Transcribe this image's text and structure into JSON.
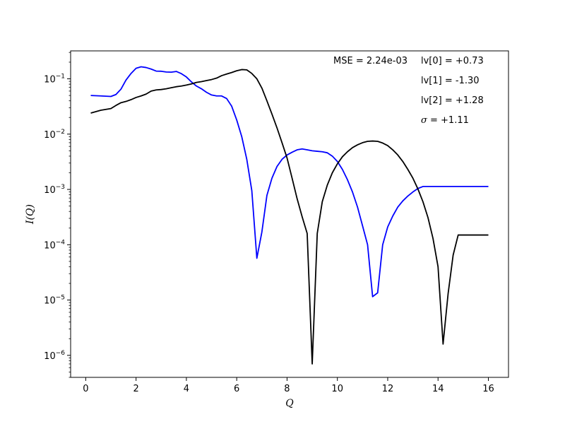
{
  "chart_data": {
    "type": "line",
    "title": "",
    "xlabel": "Q",
    "ylabel": "I(Q)",
    "xlim": [
      -0.6,
      16.8
    ],
    "ylim": [
      4e-07,
      0.32
    ],
    "yscale": "log",
    "xticks": [
      0,
      2,
      4,
      6,
      8,
      10,
      12,
      14,
      16
    ],
    "yticks": [
      {
        "value": 1e-06,
        "exp": "−6"
      },
      {
        "value": 1e-05,
        "exp": "−5"
      },
      {
        "value": 0.0001,
        "exp": "−4"
      },
      {
        "value": 0.001,
        "exp": "−3"
      },
      {
        "value": 0.01,
        "exp": "−2"
      },
      {
        "value": 0.1,
        "exp": "−1"
      }
    ],
    "grid": false,
    "annotations": {
      "mse": "MSE = 2.24e-03",
      "lv0": "lv[0] = +0.73",
      "lv1": "lv[1] = -1.30",
      "lv2": "lv[2] = +1.28",
      "sigma_symbol": "σ",
      "sigma_value": " = +1.11"
    },
    "series": [
      {
        "color": "#0000ff",
        "x": [
          0.2,
          0.6,
          1.0,
          1.2,
          1.4,
          1.6,
          1.8,
          2.0,
          2.2,
          2.4,
          2.6,
          2.8,
          3.0,
          3.2,
          3.4,
          3.6,
          3.8,
          4.0,
          4.2,
          4.4,
          4.6,
          4.8,
          5.0,
          5.2,
          5.4,
          5.6,
          5.8,
          6.0,
          6.2,
          6.4,
          6.6,
          6.8,
          7.0,
          7.2,
          7.4,
          7.6,
          7.8,
          8.0,
          8.2,
          8.4,
          8.6,
          8.8,
          9.0,
          9.2,
          9.4,
          9.6,
          9.8,
          10.0,
          10.2,
          10.4,
          10.6,
          10.8,
          11.0,
          11.2,
          11.4,
          11.6,
          11.8,
          12.0,
          12.2,
          12.4,
          12.6,
          12.8,
          13.0,
          13.2,
          13.4,
          13.6,
          13.8,
          14.0,
          14.2,
          14.4,
          14.6,
          14.8,
          15.0,
          15.2,
          15.4,
          15.6,
          15.8,
          16.0
        ],
        "y": [
          0.05,
          0.049,
          0.048,
          0.052,
          0.065,
          0.095,
          0.125,
          0.155,
          0.165,
          0.16,
          0.15,
          0.138,
          0.137,
          0.133,
          0.132,
          0.136,
          0.124,
          0.108,
          0.088,
          0.074,
          0.066,
          0.057,
          0.051,
          0.049,
          0.049,
          0.044,
          0.032,
          0.018,
          0.009,
          0.0035,
          0.00095,
          5.7e-05,
          0.00017,
          0.00078,
          0.0016,
          0.0026,
          0.0035,
          0.0042,
          0.0047,
          0.0052,
          0.0054,
          0.0052,
          0.005,
          0.0049,
          0.0048,
          0.0046,
          0.004,
          0.0032,
          0.0023,
          0.0015,
          0.0009,
          0.00048,
          0.00022,
          0.0001,
          1.15e-05,
          1.35e-05,
          0.0001,
          0.00021,
          0.00033,
          0.00048,
          0.00062,
          0.00076,
          0.0009,
          0.00104,
          0.00113,
          0.00113,
          0.00113,
          0.00113,
          0.00113,
          0.00113,
          0.00113,
          0.00113,
          0.00113,
          0.00113,
          0.00113,
          0.00113,
          0.00113,
          0.00113
        ]
      },
      {
        "color": "#000000",
        "x": [
          0.2,
          0.6,
          1.0,
          1.2,
          1.4,
          1.6,
          1.8,
          2.0,
          2.2,
          2.4,
          2.6,
          2.8,
          3.0,
          3.2,
          3.4,
          3.6,
          3.8,
          4.0,
          4.2,
          4.4,
          4.6,
          4.8,
          5.0,
          5.2,
          5.4,
          5.6,
          5.8,
          6.0,
          6.2,
          6.4,
          6.6,
          6.8,
          7.0,
          7.2,
          7.4,
          7.6,
          7.8,
          8.0,
          8.2,
          8.4,
          8.6,
          8.8,
          9.0,
          9.2,
          9.4,
          9.6,
          9.8,
          10.0,
          10.2,
          10.4,
          10.6,
          10.8,
          11.0,
          11.2,
          11.4,
          11.6,
          11.8,
          12.0,
          12.2,
          12.4,
          12.6,
          12.8,
          13.0,
          13.2,
          13.4,
          13.6,
          13.8,
          14.0,
          14.2,
          14.4,
          14.6,
          14.8,
          15.0,
          15.2,
          15.4,
          15.6,
          15.8,
          16.0
        ],
        "y": [
          0.024,
          0.027,
          0.029,
          0.033,
          0.037,
          0.039,
          0.042,
          0.046,
          0.049,
          0.053,
          0.06,
          0.063,
          0.064,
          0.066,
          0.069,
          0.072,
          0.074,
          0.077,
          0.081,
          0.086,
          0.089,
          0.093,
          0.097,
          0.103,
          0.114,
          0.122,
          0.13,
          0.14,
          0.147,
          0.145,
          0.125,
          0.1,
          0.068,
          0.04,
          0.023,
          0.013,
          0.007,
          0.0037,
          0.0016,
          0.00068,
          0.00032,
          0.00016,
          7e-07,
          0.00016,
          0.0006,
          0.0012,
          0.002,
          0.0029,
          0.0039,
          0.0048,
          0.0057,
          0.0064,
          0.007,
          0.0074,
          0.0075,
          0.0074,
          0.0069,
          0.0062,
          0.0052,
          0.0042,
          0.0032,
          0.0023,
          0.0016,
          0.00102,
          0.0006,
          0.00031,
          0.00013,
          4e-05,
          1.6e-06,
          1.3e-05,
          6.5e-05,
          0.00015,
          0.00015,
          0.00015,
          0.00015,
          0.00015,
          0.00015,
          0.00015
        ]
      }
    ]
  }
}
